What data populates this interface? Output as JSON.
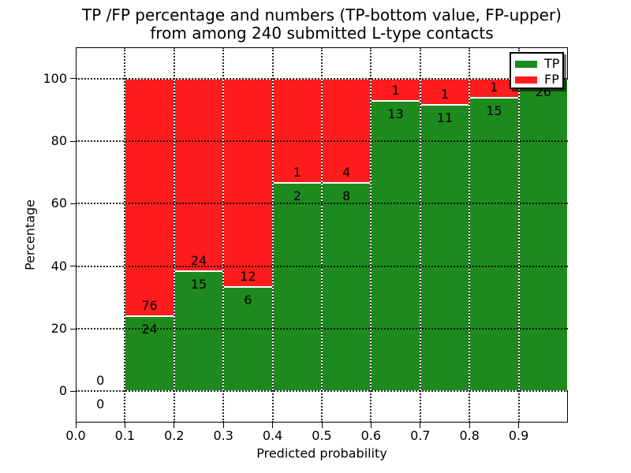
{
  "chart_data": {
    "type": "bar",
    "stacked": true,
    "title_line1": "TP /FP percentage and numbers (TP-bottom value, FP-upper)",
    "title_line2": "from among 240 submitted L-type contacts",
    "xlabel": "Predicted probability",
    "ylabel": "Percentage",
    "xlim": [
      0.0,
      1.0
    ],
    "ylim": [
      -10,
      110
    ],
    "x_tick_values": [
      0.0,
      0.1,
      0.2,
      0.3,
      0.4,
      0.5,
      0.6,
      0.7,
      0.8,
      0.9
    ],
    "x_tick_labels": [
      "0.0",
      "0.1",
      "0.2",
      "0.3",
      "0.4",
      "0.5",
      "0.6",
      "0.7",
      "0.8",
      "0.9"
    ],
    "y_tick_values": [
      0,
      20,
      40,
      60,
      80,
      100
    ],
    "y_tick_labels": [
      "0",
      "20",
      "40",
      "60",
      "80",
      "100"
    ],
    "grid": true,
    "bin_width": 0.1,
    "bin_starts": [
      0.0,
      0.1,
      0.2,
      0.3,
      0.4,
      0.5,
      0.6,
      0.7,
      0.8,
      0.9
    ],
    "series": [
      {
        "name": "TP",
        "color": "#1e8a1e",
        "counts": [
          0,
          24,
          15,
          6,
          2,
          8,
          13,
          11,
          15,
          26
        ]
      },
      {
        "name": "FP",
        "color": "#ff1c1c",
        "counts": [
          0,
          76,
          24,
          12,
          1,
          4,
          1,
          1,
          1,
          0
        ]
      }
    ],
    "tp_percentages": [
      0,
      24,
      38.46,
      33.33,
      66.67,
      66.67,
      92.86,
      91.67,
      93.75,
      100
    ],
    "bar_labels": [
      {
        "fp": "0",
        "tp": "0"
      },
      {
        "fp": "76",
        "tp": "24"
      },
      {
        "fp": "24",
        "tp": "15"
      },
      {
        "fp": "12",
        "tp": "6"
      },
      {
        "fp": "1",
        "tp": "2"
      },
      {
        "fp": "4",
        "tp": "8"
      },
      {
        "fp": "1",
        "tp": "13"
      },
      {
        "fp": "1",
        "tp": "11"
      },
      {
        "fp": "1",
        "tp": "15"
      },
      {
        "fp": null,
        "tp": "26"
      }
    ],
    "legend": {
      "position": "upper right",
      "entries": [
        {
          "label": "TP",
          "color": "#1e8a1e"
        },
        {
          "label": "FP",
          "color": "#ff1c1c"
        }
      ]
    }
  }
}
